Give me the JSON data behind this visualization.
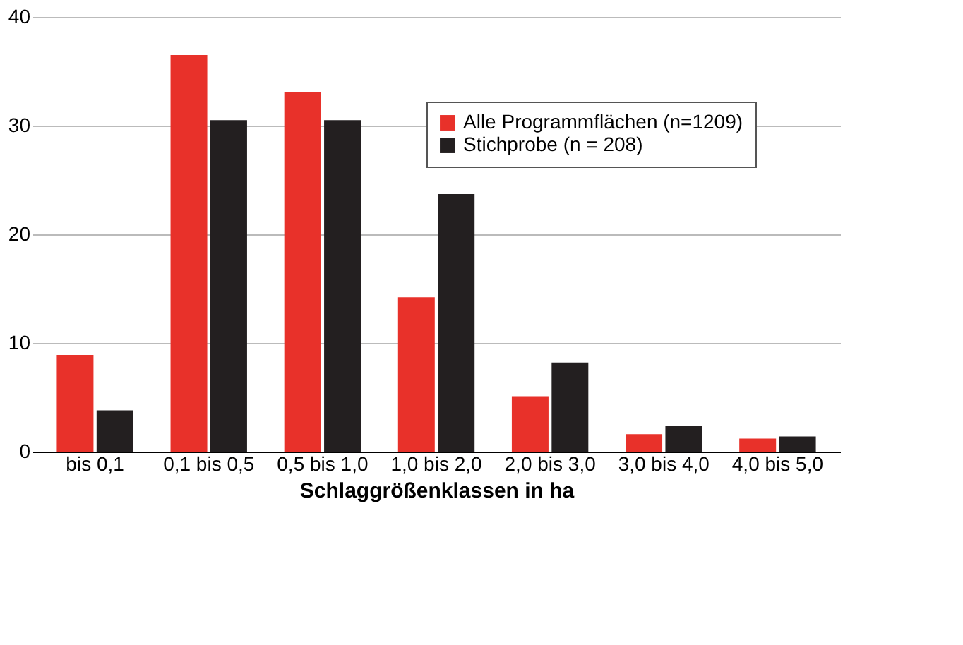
{
  "chart_data": {
    "type": "bar",
    "xlabel": "Schlaggrößenklassen in ha",
    "categories": [
      "bis 0,1",
      "0,1 bis 0,5",
      "0,5 bis 1,0",
      "1,0 bis 2,0",
      "2,0 bis 3,0",
      "3,0 bis 4,0",
      "4,0 bis 5,0"
    ],
    "series": [
      {
        "name": "Alle Programmflächen (n=1209)",
        "color": "#e8312a",
        "values": [
          8.9,
          36.5,
          33.1,
          14.2,
          5.1,
          1.6,
          1.2
        ]
      },
      {
        "name": "Stichprobe (n = 208)",
        "color": "#231f20",
        "values": [
          3.8,
          30.5,
          30.5,
          23.7,
          8.2,
          2.4,
          1.4
        ]
      }
    ],
    "ylim": [
      0,
      40
    ],
    "yticks": [
      0,
      10,
      20,
      30,
      40
    ],
    "grid": "y",
    "legend": "top right"
  }
}
